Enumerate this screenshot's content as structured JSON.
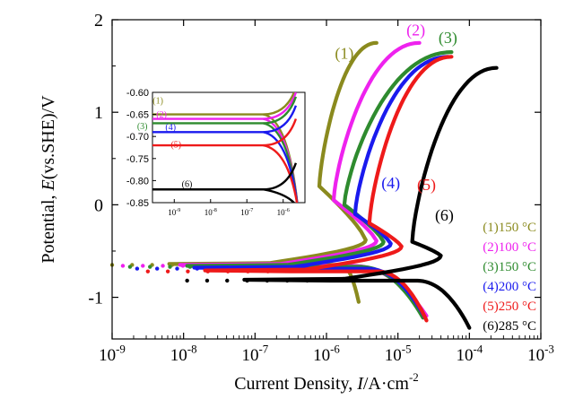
{
  "chart_data": {
    "type": "line",
    "title": "",
    "xlabel_prefix": "Current Density, ",
    "xlabel_var": "I",
    "xlabel_unit": "/A·cm",
    "xlabel_exp": "-2",
    "ylabel_prefix": "Potential, ",
    "ylabel_var": "E",
    "ylabel_unit": "(vs.SHE)/V",
    "x_scale": "log",
    "xlim_exp": [
      -9,
      -3
    ],
    "ylim": [
      -1.45,
      2.0
    ],
    "x_ticks": [
      {
        "base": "10",
        "exp": "-9"
      },
      {
        "base": "10",
        "exp": "-8"
      },
      {
        "base": "10",
        "exp": "-7"
      },
      {
        "base": "10",
        "exp": "-6"
      },
      {
        "base": "10",
        "exp": "-5"
      },
      {
        "base": "10",
        "exp": "-4"
      },
      {
        "base": "10",
        "exp": "-3"
      }
    ],
    "y_ticks": [
      "2",
      "1",
      "0",
      "-1"
    ],
    "series": [
      {
        "name": "(1)150 °C",
        "label": "(1)",
        "color": "#8a8a1e",
        "ecorr": -0.65,
        "logicorr": -5.6,
        "cath_end": [
          -5.55,
          -1.05
        ],
        "pass_log": -6.1,
        "pass_e": 0.2,
        "top": [
          -5.3,
          1.75
        ]
      },
      {
        "name": "(2)100 °C",
        "label": "(2)",
        "color": "#ee22ee",
        "ecorr": -0.66,
        "logicorr": -5.45,
        "cath_end": [
          -4.6,
          -1.2
        ],
        "pass_log": -5.9,
        "pass_e": 0.05,
        "top": [
          -4.7,
          1.75
        ]
      },
      {
        "name": "(3)150 °C",
        "label": "(3)",
        "color": "#2e8b2e",
        "ecorr": -0.67,
        "logicorr": -5.35,
        "cath_end": [
          -4.65,
          -1.22
        ],
        "pass_log": -5.75,
        "pass_e": 0.0,
        "top": [
          -4.25,
          1.65
        ]
      },
      {
        "name": "(4)200 °C",
        "label": "(4)",
        "color": "#1a1aee",
        "ecorr": -0.69,
        "logicorr": -5.25,
        "cath_end": [
          -4.62,
          -1.22
        ],
        "pass_log": -5.6,
        "pass_e": -0.1,
        "top": [
          -4.3,
          1.6
        ]
      },
      {
        "name": "(5)250 °C",
        "label": "(5)",
        "color": "#ee1a1a",
        "ecorr": -0.72,
        "logicorr": -5.1,
        "cath_end": [
          -4.6,
          -1.25
        ],
        "pass_log": -5.4,
        "pass_e": -0.2,
        "top": [
          -4.25,
          1.6
        ]
      },
      {
        "name": "(6)285 °C",
        "label": "(6)",
        "color": "#000000",
        "ecorr": -0.82,
        "logicorr": -4.55,
        "cath_end": [
          -4.0,
          -1.33
        ],
        "pass_log": -4.8,
        "pass_e": -0.4,
        "top": [
          -3.62,
          1.48
        ]
      }
    ],
    "legend_position": "bottom-right",
    "inset": {
      "xlim_exp": [
        -9.6,
        -5.4
      ],
      "ylim": [
        -0.85,
        -0.6
      ],
      "y_ticks": [
        "-0.60",
        "-0.65",
        "-0.70",
        "-0.75",
        "-0.80",
        "-0.85"
      ],
      "x_ticks": [
        {
          "base": "10",
          "exp": "-9"
        },
        {
          "base": "10",
          "exp": "-8"
        },
        {
          "base": "10",
          "exp": "-7"
        },
        {
          "base": "10",
          "exp": "-6"
        }
      ]
    }
  }
}
